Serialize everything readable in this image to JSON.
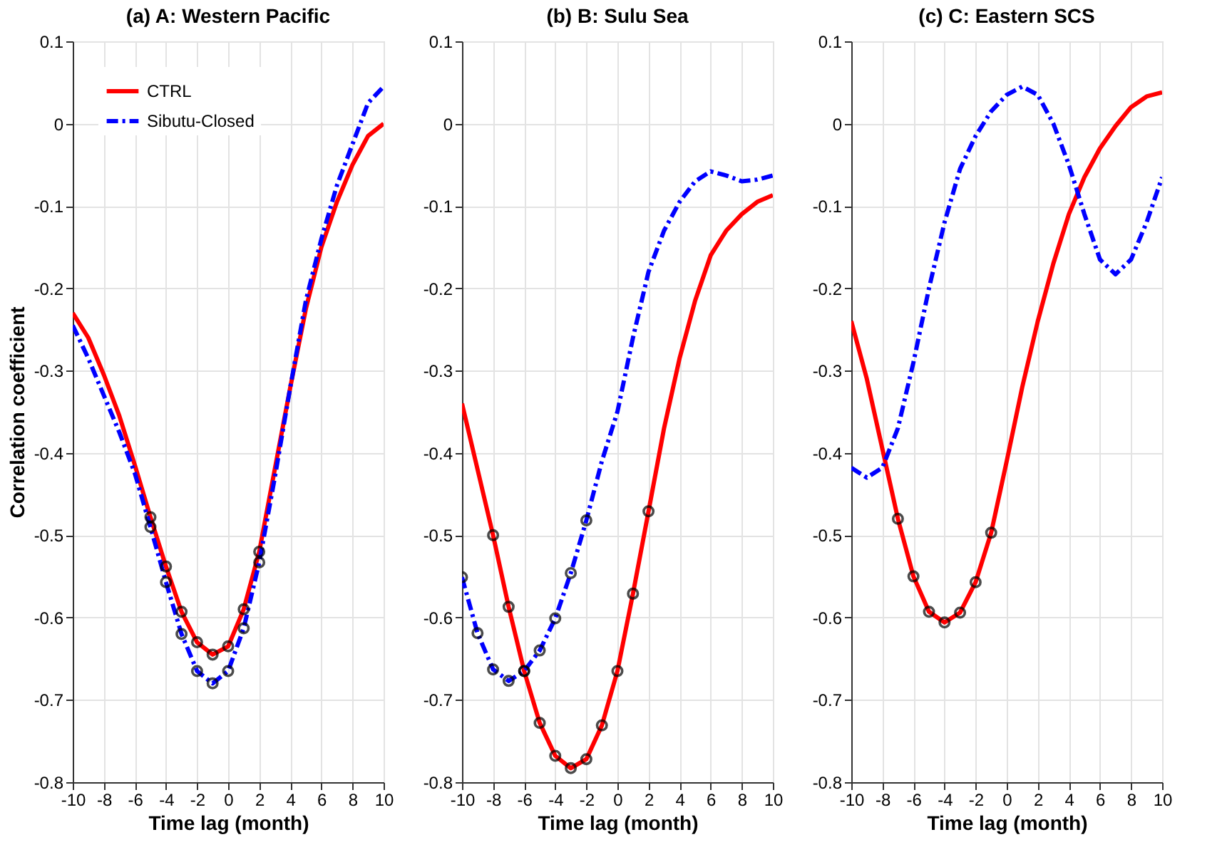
{
  "chart_data": [
    {
      "type": "line",
      "title": "(a) A: Western Pacific",
      "xlabel": "Time lag (month)",
      "ylabel": "Correlation coefficient",
      "xlim": [
        -10,
        10
      ],
      "xticks": [
        -10,
        -8,
        -6,
        -4,
        -2,
        0,
        2,
        4,
        6,
        8,
        10
      ],
      "ylim": [
        -0.8,
        0.1
      ],
      "yticks": [
        -0.8,
        -0.7,
        -0.6,
        -0.5,
        -0.4,
        -0.3,
        -0.2,
        -0.1,
        0,
        0.1
      ],
      "grid": true,
      "legend": "top left",
      "x": [
        -10,
        -9,
        -8,
        -7,
        -6,
        -5,
        -4,
        -3,
        -2,
        -1,
        0,
        1,
        2,
        3,
        4,
        5,
        6,
        7,
        8,
        9,
        10
      ],
      "series": [
        {
          "name": "CTRL",
          "color": "#ff0000",
          "line_style": "solid",
          "values": [
            -0.23,
            -0.26,
            -0.305,
            -0.355,
            -0.415,
            -0.478,
            -0.538,
            -0.593,
            -0.63,
            -0.645,
            -0.635,
            -0.59,
            -0.52,
            -0.42,
            -0.32,
            -0.225,
            -0.15,
            -0.095,
            -0.05,
            -0.015,
            0.0
          ]
        },
        {
          "name": "Sibutu-Closed",
          "color": "#0000ff",
          "line_style": "dashed",
          "values": [
            -0.245,
            -0.285,
            -0.33,
            -0.375,
            -0.425,
            -0.49,
            -0.557,
            -0.62,
            -0.665,
            -0.68,
            -0.665,
            -0.613,
            -0.533,
            -0.43,
            -0.32,
            -0.215,
            -0.14,
            -0.075,
            -0.025,
            0.025,
            0.045
          ]
        },
        {
          "type": "scatter",
          "marker": "circle",
          "color": "#000000",
          "x": [
            -5,
            -4,
            -3,
            -2,
            -1,
            0,
            1,
            2
          ],
          "values": [
            -0.478,
            -0.538,
            -0.593,
            -0.63,
            -0.645,
            -0.635,
            -0.59,
            -0.52
          ]
        },
        {
          "type": "scatter",
          "marker": "circle",
          "color": "#000000",
          "x": [
            -5,
            -4,
            -3,
            -2,
            -1,
            0,
            1,
            2
          ],
          "values": [
            -0.49,
            -0.557,
            -0.62,
            -0.665,
            -0.68,
            -0.665,
            -0.613,
            -0.533
          ]
        }
      ]
    },
    {
      "type": "line",
      "title": "(b) B: Sulu Sea",
      "xlabel": "Time lag (month)",
      "xlim": [
        -10,
        10
      ],
      "xticks": [
        -10,
        -8,
        -6,
        -4,
        -2,
        0,
        2,
        4,
        6,
        8,
        10
      ],
      "ylim": [
        -0.8,
        0.1
      ],
      "yticks": [
        -0.8,
        -0.7,
        -0.6,
        -0.5,
        -0.4,
        -0.3,
        -0.2,
        -0.1,
        0,
        0.1
      ],
      "grid": true,
      "x": [
        -10,
        -9,
        -8,
        -7,
        -6,
        -5,
        -4,
        -3,
        -2,
        -1,
        0,
        1,
        2,
        3,
        4,
        5,
        6,
        7,
        8,
        9,
        10
      ],
      "series": [
        {
          "color": "#ff0000",
          "line_style": "solid",
          "values": [
            -0.34,
            -0.42,
            -0.5,
            -0.587,
            -0.665,
            -0.728,
            -0.768,
            -0.783,
            -0.772,
            -0.731,
            -0.665,
            -0.571,
            -0.471,
            -0.37,
            -0.285,
            -0.215,
            -0.16,
            -0.13,
            -0.11,
            -0.095,
            -0.087
          ]
        },
        {
          "color": "#0000ff",
          "line_style": "dashed",
          "values": [
            -0.551,
            -0.619,
            -0.663,
            -0.677,
            -0.665,
            -0.64,
            -0.601,
            -0.546,
            -0.482,
            -0.41,
            -0.35,
            -0.26,
            -0.18,
            -0.13,
            -0.095,
            -0.07,
            -0.058,
            -0.063,
            -0.07,
            -0.068,
            -0.063
          ]
        },
        {
          "type": "scatter",
          "marker": "circle",
          "color": "#000000",
          "x": [
            -8,
            -7,
            -6,
            -5,
            -4,
            -3,
            -2,
            -1,
            0,
            1,
            2
          ],
          "values": [
            -0.5,
            -0.587,
            -0.665,
            -0.728,
            -0.768,
            -0.783,
            -0.772,
            -0.731,
            -0.665,
            -0.571,
            -0.471
          ]
        },
        {
          "type": "scatter",
          "marker": "circle",
          "color": "#000000",
          "x": [
            -10,
            -9,
            -8,
            -7,
            -6,
            -5,
            -4,
            -3,
            -2
          ],
          "values": [
            -0.551,
            -0.619,
            -0.663,
            -0.677,
            -0.665,
            -0.64,
            -0.601,
            -0.546,
            -0.482
          ]
        }
      ]
    },
    {
      "type": "line",
      "title": "(c) C: Eastern SCS",
      "xlabel": "Time lag (month)",
      "xlim": [
        -10,
        10
      ],
      "xticks": [
        -10,
        -8,
        -6,
        -4,
        -2,
        0,
        2,
        4,
        6,
        8,
        10
      ],
      "ylim": [
        -0.8,
        0.1
      ],
      "yticks": [
        -0.8,
        -0.7,
        -0.6,
        -0.5,
        -0.4,
        -0.3,
        -0.2,
        -0.1,
        0,
        0.1
      ],
      "grid": true,
      "x": [
        -10,
        -9,
        -8,
        -7,
        -6,
        -5,
        -4,
        -3,
        -2,
        -1,
        0,
        1,
        2,
        3,
        4,
        5,
        6,
        7,
        8,
        9,
        10
      ],
      "series": [
        {
          "color": "#ff0000",
          "line_style": "solid",
          "values": [
            -0.24,
            -0.31,
            -0.395,
            -0.48,
            -0.55,
            -0.593,
            -0.606,
            -0.594,
            -0.557,
            -0.497,
            -0.41,
            -0.32,
            -0.24,
            -0.17,
            -0.11,
            -0.065,
            -0.03,
            -0.003,
            0.02,
            0.033,
            0.038
          ]
        },
        {
          "color": "#0000ff",
          "line_style": "dashed",
          "values": [
            -0.418,
            -0.43,
            -0.418,
            -0.37,
            -0.29,
            -0.2,
            -0.12,
            -0.055,
            -0.015,
            0.015,
            0.035,
            0.045,
            0.035,
            0.0,
            -0.05,
            -0.11,
            -0.165,
            -0.183,
            -0.165,
            -0.12,
            -0.065
          ]
        },
        {
          "type": "scatter",
          "marker": "circle",
          "color": "#000000",
          "x": [
            -7,
            -6,
            -5,
            -4,
            -3,
            -2,
            -1
          ],
          "values": [
            -0.48,
            -0.55,
            -0.593,
            -0.606,
            -0.594,
            -0.557,
            -0.497
          ]
        }
      ]
    }
  ]
}
